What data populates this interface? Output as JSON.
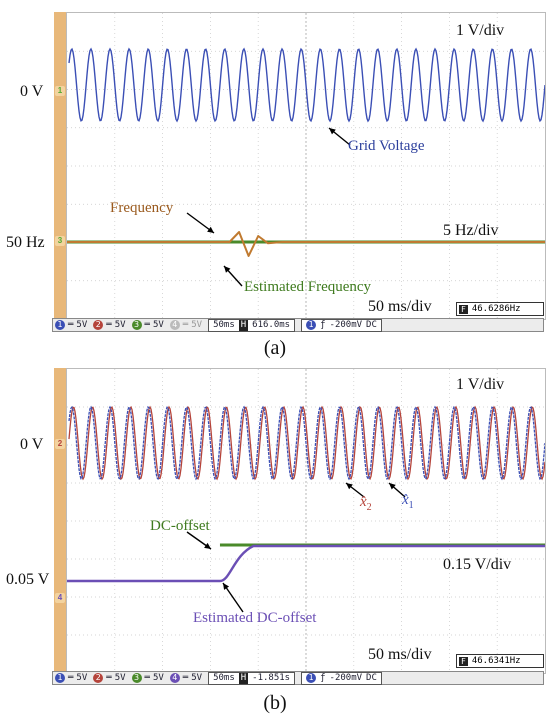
{
  "panel_a": {
    "level_voltage": "0 V",
    "level_freq": "50 Hz",
    "scale_top": "1 V/div",
    "scale_mid": "5 Hz/div",
    "time_div": "50 ms/div",
    "ann_grid": "Grid Voltage",
    "ann_freq": "Frequency",
    "ann_est_freq": "Estimated Frequency",
    "caption": "(a)",
    "freq_readout": "46.6286Hz",
    "status": {
      "ch1": "5V",
      "ch2": "5V",
      "ch3": "5V",
      "ch4": "5V",
      "tb": "50ms",
      "pos": "616.0ms",
      "trig_ch": "1",
      "trig": "-200mV",
      "coupling": "DC"
    }
  },
  "panel_b": {
    "level_voltage": "0 V",
    "level_dc": "0.05 V",
    "scale_top": "1 V/div",
    "scale_mid": "0.15 V/div",
    "time_div": "50 ms/div",
    "ann_x2": "x̂",
    "ann_x2_sub": "2",
    "ann_x1": "x̂",
    "ann_x1_sub": "1",
    "ann_dc": "DC-offset",
    "ann_est_dc": "Estimated DC-offset",
    "caption": "(b)",
    "freq_readout": "46.6341Hz",
    "status": {
      "ch1": "5V",
      "ch2": "5V",
      "ch3": "5V",
      "ch4": "5V",
      "tb": "50ms",
      "pos": "-1.851s",
      "trig_ch": "1",
      "trig": "-200mV",
      "coupling": "DC"
    }
  },
  "chart_data": [
    {
      "type": "line",
      "title": "",
      "time_per_div_ms": 50,
      "divisions_x": 10,
      "series": [
        {
          "name": "Grid Voltage",
          "color": "#3b4fb5",
          "amplitude_V": 1.2,
          "cycles_on_screen": 25,
          "offset_label": "0 V"
        },
        {
          "name": "Frequency",
          "color": "#4a8a2a",
          "value_Hz": 50
        },
        {
          "name": "Estimated Frequency",
          "color": "#c07a30",
          "value_Hz": 50,
          "transient": {
            "t_ms": [
              170,
              180,
              190,
              200,
              210,
              225
            ],
            "deviation_Hz": [
              0,
              2.5,
              -3.5,
              1.5,
              -0.3,
              0
            ]
          }
        }
      ]
    },
    {
      "type": "line",
      "title": "",
      "time_per_div_ms": 50,
      "divisions_x": 10,
      "series": [
        {
          "name": "x̂1",
          "color": "#3b4fb5",
          "amplitude_V": 1.2,
          "cycles_on_screen": 25
        },
        {
          "name": "x̂2",
          "color": "#b5443b",
          "amplitude_V": 1.2,
          "cycles_on_screen": 25
        },
        {
          "name": "DC-offset",
          "color": "#4a8a2a",
          "before_V": 0.05,
          "after_V": 0.4,
          "step_t_ms": 160
        },
        {
          "name": "Estimated DC-offset",
          "color": "#6b4fb5",
          "before_V": 0.05,
          "after_V": 0.4,
          "ramp_t_ms": [
            160,
            195
          ]
        }
      ]
    }
  ]
}
